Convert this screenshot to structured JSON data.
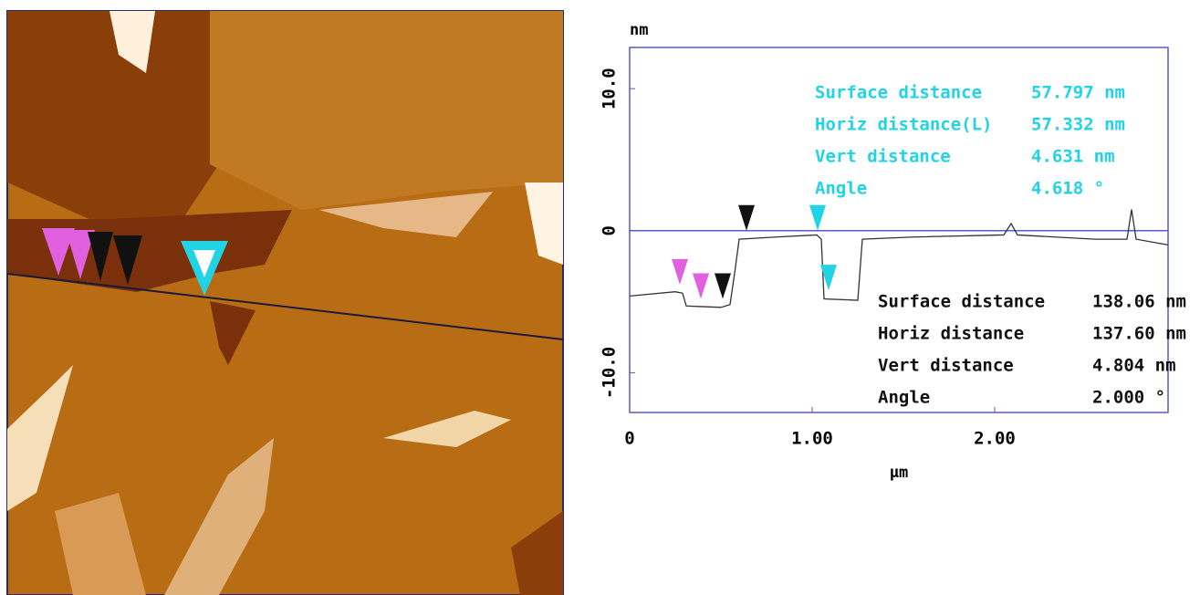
{
  "chart_data": {
    "type": "line",
    "y_label": "nm",
    "x_label": "μm",
    "x": [
      0,
      0.25,
      0.29,
      0.31,
      0.5,
      0.55,
      0.575,
      0.6,
      0.8,
      1.025,
      1.05,
      1.065,
      1.25,
      1.275,
      1.55,
      2.05,
      2.09,
      2.125,
      2.55,
      2.725,
      2.75,
      2.775,
      2.95
    ],
    "series": [
      {
        "color": "#333333",
        "values": [
          -4.6,
          -4.3,
          -4.4,
          -5.3,
          -5.4,
          -5.2,
          -3,
          -0.6,
          -0.45,
          -0.3,
          -0.6,
          -4.8,
          -4.9,
          -0.6,
          -0.45,
          -0.3,
          0.5,
          -0.3,
          -0.6,
          -0.6,
          1.5,
          -0.6,
          -1.0
        ]
      }
    ],
    "xlim": [
      0,
      2.95
    ],
    "ylim": [
      -12.8,
      12.9
    ],
    "xticks": [
      0,
      {
        "value": 1,
        "label": "1.00"
      },
      {
        "value": 2,
        "label": "2.00"
      }
    ],
    "yticks": [
      {
        "value": 10,
        "label": "10.0"
      },
      0,
      {
        "value": -10,
        "label": "-10.0"
      }
    ],
    "cursors": [
      {
        "color": "#e060e0",
        "x": 0.275,
        "y": -2.9
      },
      {
        "color": "#e060e0",
        "x": 0.39,
        "y": -3.9
      },
      {
        "color": "#111111",
        "x": 0.51,
        "y": -3.9
      },
      {
        "color": "#111111",
        "x": 0.64,
        "y": 0.9
      },
      {
        "color": "#22d3e6",
        "x": 1.03,
        "y": 0.9
      },
      {
        "color": "#22d3e6",
        "x": 1.09,
        "y": -3.3
      }
    ],
    "measurements": [
      {
        "color": "#22d3e6",
        "rows": [
          [
            "Surface distance",
            "57.797 nm"
          ],
          [
            "Horiz distance(L)",
            "57.332 nm"
          ],
          [
            "Vert distance",
            "4.631 nm"
          ],
          [
            "Angle",
            "4.618 °"
          ]
        ]
      },
      {
        "color": "#111111",
        "rows": [
          [
            "Surface distance",
            "138.06 nm"
          ],
          [
            "Horiz distance",
            "137.60 nm"
          ],
          [
            "Vert distance",
            "4.804 nm"
          ],
          [
            "Angle",
            "2.000 °"
          ]
        ]
      }
    ]
  }
}
